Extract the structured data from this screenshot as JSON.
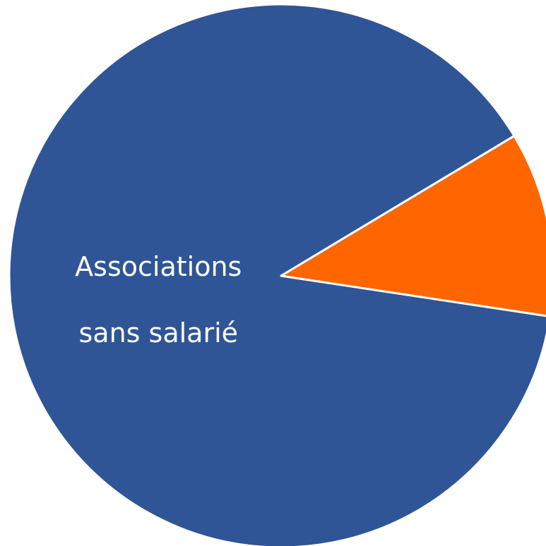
{
  "chart_data": {
    "type": "pie",
    "categories": [
      "Associations sans salarié",
      null
    ],
    "values": [
      89,
      11
    ],
    "colors": [
      "#2f5597",
      "#ff6600"
    ]
  }
}
